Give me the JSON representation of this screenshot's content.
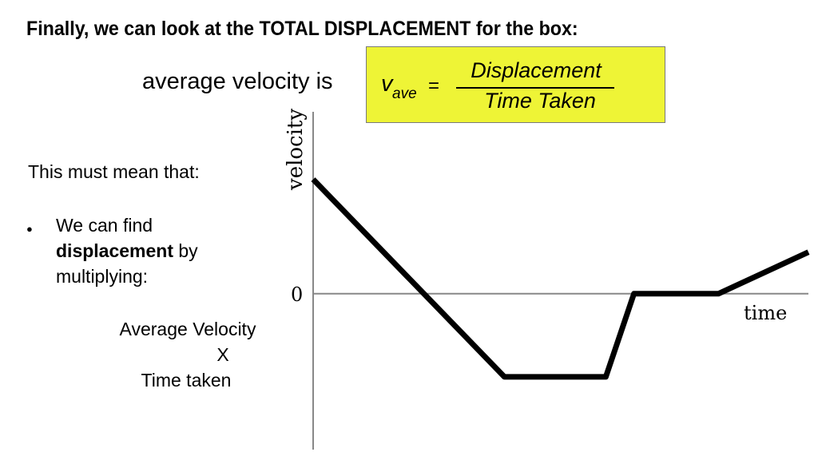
{
  "heading": "Finally, we can look at the TOTAL DISPLACEMENT for the box:",
  "formula": {
    "lead_text": "average velocity is",
    "symbol": "v",
    "subscript": "ave",
    "equals": "=",
    "numerator": "Displacement",
    "denominator": "Time Taken",
    "box_color": "#eef436"
  },
  "left_text": {
    "intro": "This must mean that:",
    "bullet_before": "We can find",
    "bullet_bold": "displacement",
    "bullet_after": "by",
    "bullet_last": "multiplying:",
    "calc_line1": "Average Velocity",
    "calc_line2": "X",
    "calc_line3": "Time taken"
  },
  "graph": {
    "y_label": "velocity",
    "x_label": "time",
    "origin_label": "0",
    "line_color": "#000000",
    "axis_color": "#888888"
  },
  "chart_data": {
    "type": "line",
    "title": "",
    "xlabel": "time",
    "ylabel": "velocity",
    "x": [
      0,
      1.7,
      2.6,
      2.85,
      3.6,
      4.4
    ],
    "y": [
      1.1,
      -0.8,
      -0.8,
      0,
      0,
      0.4
    ],
    "xlim": [
      0,
      4.4
    ],
    "ylim": [
      -1.5,
      1.75
    ],
    "grid": false
  }
}
